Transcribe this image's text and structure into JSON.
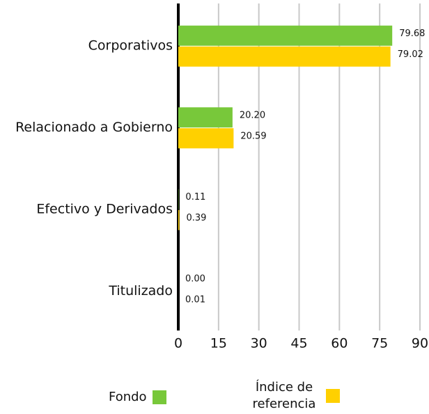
{
  "chart_data": {
    "type": "bar",
    "orientation": "horizontal",
    "categories": [
      "Corporativos",
      "Relacionado a Gobierno",
      "Efectivo y Derivados",
      "Titulizado"
    ],
    "series": [
      {
        "name": "Fondo",
        "color": "#78c83a",
        "values": [
          79.68,
          20.2,
          0.11,
          0
        ],
        "value_labels": [
          "79.68",
          "20.20",
          "0.11",
          "0.00"
        ]
      },
      {
        "name": "Índice de referencia",
        "color": "#ffd000",
        "values": [
          79.02,
          20.59,
          0.39,
          0.01
        ],
        "value_labels": [
          "79.02",
          "20.59",
          "0.39",
          "0.01"
        ]
      }
    ],
    "xlim": [
      0,
      90
    ],
    "xticks": [
      0,
      15,
      30,
      45,
      60,
      75,
      90
    ],
    "grid": true,
    "legend": "bottom"
  }
}
